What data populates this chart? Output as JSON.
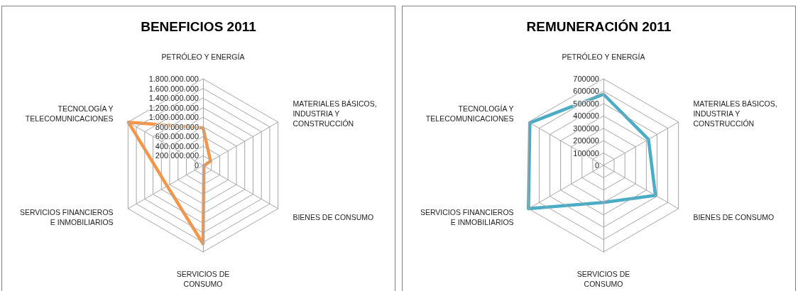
{
  "chart_data": [
    {
      "type": "radar",
      "title": "BENEFICIOS 2011",
      "categories": [
        "PETRÓLEO Y ENERGÍA",
        "MATERIALES BÁSICOS,\nINDUSTRIA Y\nCONSTRUCCIÓN",
        "BIENES DE CONSUMO",
        "SERVICIOS DE\nCONSUMO",
        "SERVICIOS FINANCIEROS\nE INMOBILIARIOS",
        "TECNOLOGÍA Y\nTELECOMUNICACIONES"
      ],
      "series": [
        {
          "color": "#f79646",
          "values": [
            780000000,
            180000000,
            20000000,
            1630000000,
            860000000,
            1790000000
          ]
        }
      ],
      "ylim": [
        0,
        1800000000
      ],
      "yticks": [
        0,
        {
          "value": 200000000,
          "label": "200.000.000"
        },
        {
          "value": 400000000,
          "label": "400.000.000"
        },
        {
          "value": 600000000,
          "label": "600.000.000"
        },
        {
          "value": 800000000,
          "label": "800.000.000"
        },
        {
          "value": 1000000000,
          "label": "1.000.000.000"
        },
        {
          "value": 1200000000,
          "label": "1.200.000.000"
        },
        {
          "value": 1400000000,
          "label": "1.400.000.000"
        },
        {
          "value": 1600000000,
          "label": "1.600.000.000"
        },
        {
          "value": 1800000000,
          "label": "1.800.000.000"
        }
      ],
      "grid": true,
      "marker": "none"
    },
    {
      "type": "radar",
      "title": "REMUNERACIÓN 2011",
      "categories": [
        "PETRÓLEO Y ENERGÍA",
        "MATERIALES BÁSICOS,\nINDUSTRIA Y\nCONSTRUCCIÓN",
        "BIENES DE CONSUMO",
        "SERVICIOS DE\nCONSUMO",
        "SERVICIOS FINANCIEROS\nE INMOBILIARIOS",
        "TECNOLOGÍA Y\nTELECOMUNICACIONES"
      ],
      "series": [
        {
          "color": "#4bacc6",
          "values": [
            575000,
            420000,
            485000,
            300000,
            700000,
            687000
          ]
        }
      ],
      "ylim": [
        0,
        700000
      ],
      "yticks": [
        0,
        100000,
        200000,
        300000,
        400000,
        500000,
        600000,
        700000
      ],
      "grid": true,
      "marker": "none"
    }
  ]
}
